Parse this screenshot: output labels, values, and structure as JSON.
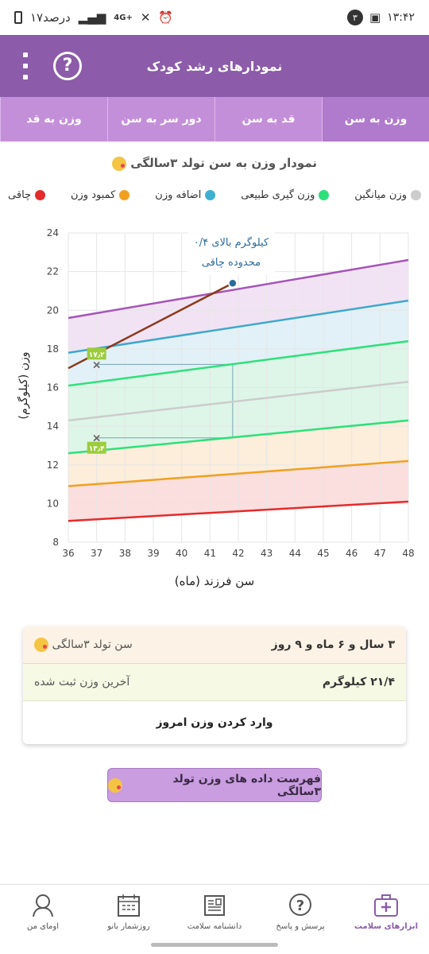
{
  "status_bar": {
    "time": "۱۳:۴۲",
    "notification_count": "۳",
    "battery_text": "۱۷درصد",
    "network": "4G+"
  },
  "app_bar": {
    "title": "نمودارهای رشد کودک"
  },
  "tabs": [
    {
      "label": "وزن به سن",
      "active": true
    },
    {
      "label": "قد به سن",
      "active": false
    },
    {
      "label": "دور سر به سن",
      "active": false
    },
    {
      "label": "وزن به قد",
      "active": false
    }
  ],
  "chart_section": {
    "title": "نمودار وزن به سن تولد ۳سالگی"
  },
  "legend": [
    {
      "label": "چاقی",
      "color": "#e52b2b"
    },
    {
      "label": "کمبود وزن",
      "color": "#f0a020"
    },
    {
      "label": "اضافه وزن",
      "color": "#3fb0d2"
    },
    {
      "label": "وزن گیری طبیعی",
      "color": "#2ee07a"
    },
    {
      "label": "وزن میانگین",
      "color": "#cccccc"
    }
  ],
  "chart_data": {
    "type": "line",
    "xlabel": "سن فرزند (ماه)",
    "ylabel": "وزن (کیلوگرم)",
    "xlim": [
      36,
      48
    ],
    "ylim": [
      8,
      24
    ],
    "x_ticks": [
      "36",
      "37",
      "38",
      "39",
      "40",
      "41",
      "42",
      "43",
      "44",
      "45",
      "46",
      "47",
      "48"
    ],
    "y_ticks": [
      "8",
      "10",
      "12",
      "14",
      "16",
      "18",
      "20",
      "22",
      "24"
    ],
    "series": [
      {
        "color": "#a555b8",
        "x": [
          36,
          48
        ],
        "y": [
          19.6,
          22.6
        ]
      },
      {
        "color": "#3fa8cc",
        "x": [
          36,
          48
        ],
        "y": [
          17.8,
          20.5
        ]
      },
      {
        "color": "#2ee07a",
        "x": [
          36,
          48
        ],
        "y": [
          16.1,
          18.4
        ]
      },
      {
        "color": "#cccccc",
        "x": [
          36,
          48
        ],
        "y": [
          14.3,
          16.3
        ]
      },
      {
        "color": "#2ee07a",
        "x": [
          36,
          48
        ],
        "y": [
          12.6,
          14.3
        ]
      },
      {
        "color": "#f0a020",
        "x": [
          36,
          48
        ],
        "y": [
          10.9,
          12.2
        ]
      },
      {
        "color": "#e52b2b",
        "x": [
          36,
          48
        ],
        "y": [
          9.1,
          10.1
        ]
      },
      {
        "color": "#8b3a1a",
        "x": [
          36,
          41.8
        ],
        "y": [
          17.0,
          21.4
        ]
      }
    ],
    "markers": [
      {
        "x": 37,
        "y": 17.2,
        "label": "۱۷٫۲"
      },
      {
        "x": 37,
        "y": 13.4,
        "label": "۱۳٫۴"
      }
    ],
    "reference_box": {
      "x": [
        37,
        41.8
      ],
      "y": [
        13.4,
        17.2
      ]
    },
    "last_point": {
      "x": 41.8,
      "y": 21.4
    },
    "annotation": [
      "۰/۴ کیلوگرم بالای",
      "محدوده چاقی"
    ]
  },
  "summary": {
    "age_label": "سن تولد ۳سالگی",
    "age_value": "۳ سال و ۶ ماه و ۹ روز",
    "weight_label": "آخرین وزن ثبت شده",
    "weight_value": "۲۱/۴ کیلوگرم",
    "enter_button": "وارد کردن وزن امروز"
  },
  "list_button": "فهرست داده های وزن تولد ۳سالگی",
  "bottom_nav": [
    {
      "label": "ابزارهای سلامت",
      "icon": "health-kit-icon",
      "active": true
    },
    {
      "label": "پرسش و پاسخ",
      "icon": "question-icon",
      "active": false
    },
    {
      "label": "دانشنامه سلامت",
      "icon": "encyclopedia-icon",
      "active": false
    },
    {
      "label": "روزشمار بانو",
      "icon": "calendar-icon",
      "active": false
    },
    {
      "label": "اومای من",
      "icon": "profile-icon",
      "active": false
    }
  ]
}
